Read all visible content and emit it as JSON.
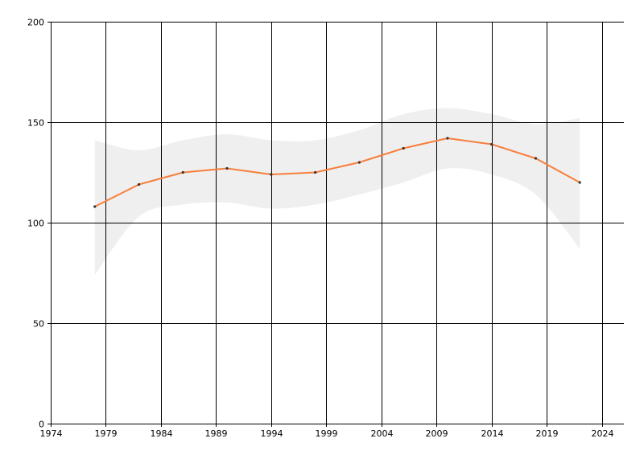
{
  "chart_data": {
    "type": "line",
    "title": "",
    "xlabel": "",
    "ylabel": "",
    "grid": true,
    "legend": "none",
    "xlim": [
      1974,
      2026
    ],
    "ylim": [
      0,
      200
    ],
    "x_ticks": [
      "1974",
      "1979",
      "1984",
      "1989",
      "1994",
      "1999",
      "2004",
      "2009",
      "2014",
      "2019",
      "2024"
    ],
    "y_ticks": [
      "0",
      "50",
      "100",
      "150",
      "200"
    ],
    "x": [
      1978,
      1982,
      1986,
      1990,
      1994,
      1998,
      2002,
      2006,
      2010,
      2014,
      2018,
      2022
    ],
    "series": [
      {
        "values": [
          108,
          119,
          125,
          127,
          124,
          125,
          130,
          137,
          142,
          139,
          132,
          120
        ],
        "color": "#f77f3b"
      }
    ],
    "band": {
      "color": "#efefef",
      "upper": [
        141,
        136,
        141,
        144,
        141,
        141,
        146,
        154,
        157,
        154,
        149,
        152
      ],
      "lower": [
        74,
        103,
        109,
        110,
        107,
        109,
        114,
        120,
        127,
        124,
        114,
        87
      ]
    }
  }
}
